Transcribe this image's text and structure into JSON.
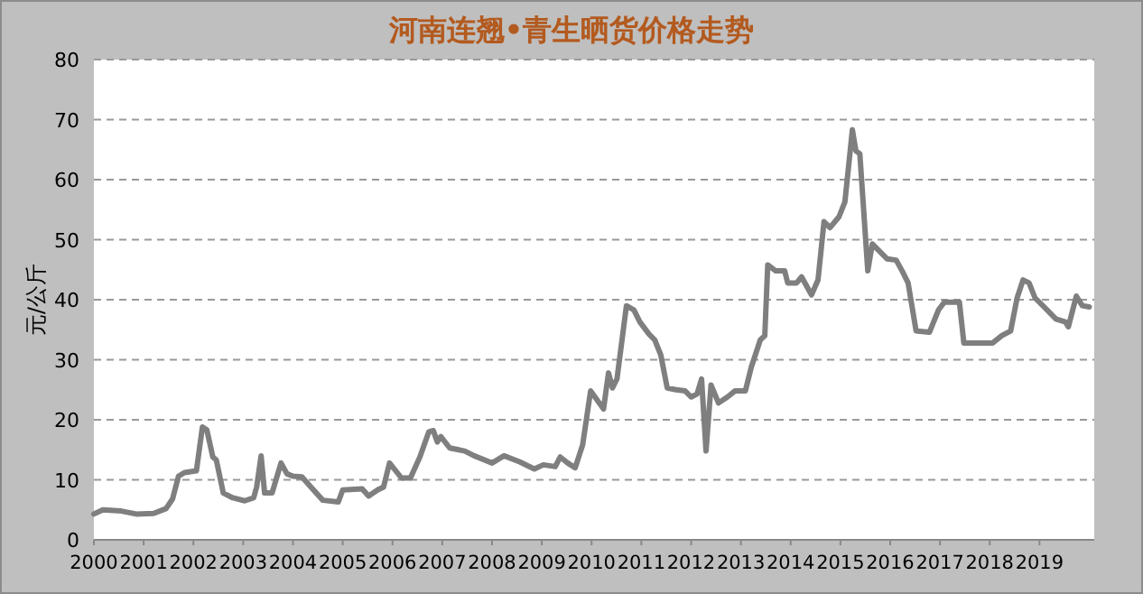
{
  "chart_data": {
    "type": "line",
    "title": "河南连翘•青生晒货价格走势",
    "ylabel": "元/公斤",
    "grid": "y",
    "line_style": "solid",
    "marker": "none",
    "xlim": [
      2000,
      2020.1
    ],
    "xticks": [
      2000,
      2001,
      2002,
      2003,
      2004,
      2005,
      2006,
      2007,
      2008,
      2009,
      2010,
      2011,
      2012,
      2013,
      2014,
      2015,
      2016,
      2017,
      2018,
      2019
    ],
    "ylim": [
      0,
      80
    ],
    "yticks": [
      0,
      10,
      20,
      30,
      40,
      50,
      60,
      70,
      80
    ],
    "series": [
      {
        "color": "#7f7f7f",
        "x": [
          2000.0,
          2000.18,
          2000.55,
          2000.85,
          2001.2,
          2001.45,
          2001.58,
          2001.7,
          2001.82,
          2002.06,
          2002.18,
          2002.27,
          2002.39,
          2002.46,
          2002.6,
          2002.79,
          2003.03,
          2003.21,
          2003.27,
          2003.36,
          2003.43,
          2003.58,
          2003.76,
          2003.88,
          2004.0,
          2004.18,
          2004.36,
          2004.6,
          2004.91,
          2005.0,
          2005.39,
          2005.52,
          2005.7,
          2005.82,
          2005.94,
          2006.18,
          2006.36,
          2006.55,
          2006.73,
          2006.82,
          2006.9,
          2006.97,
          2007.15,
          2007.45,
          2007.64,
          2008.0,
          2008.24,
          2008.55,
          2008.85,
          2009.03,
          2009.27,
          2009.37,
          2009.52,
          2009.67,
          2009.82,
          2009.98,
          2010.24,
          2010.34,
          2010.42,
          2010.51,
          2010.7,
          2010.85,
          2010.97,
          2011.15,
          2011.27,
          2011.39,
          2011.52,
          2011.7,
          2011.88,
          2012.0,
          2012.12,
          2012.21,
          2012.3,
          2012.4,
          2012.55,
          2012.73,
          2012.88,
          2013.09,
          2013.21,
          2013.39,
          2013.48,
          2013.54,
          2013.7,
          2013.88,
          2013.94,
          2014.12,
          2014.22,
          2014.42,
          2014.55,
          2014.67,
          2014.79,
          2014.97,
          2015.09,
          2015.24,
          2015.31,
          2015.39,
          2015.55,
          2015.64,
          2015.76,
          2015.94,
          2016.12,
          2016.24,
          2016.36,
          2016.52,
          2016.79,
          2016.97,
          2017.09,
          2017.39,
          2017.48,
          2018.06,
          2018.24,
          2018.42,
          2018.55,
          2018.67,
          2018.79,
          2018.91,
          2019.09,
          2019.33,
          2019.52,
          2019.58,
          2019.74,
          2019.86,
          2020.0
        ],
        "values": [
          4.3,
          5.0,
          4.8,
          4.3,
          4.4,
          5.2,
          6.8,
          10.6,
          11.2,
          11.5,
          18.8,
          18.3,
          13.8,
          13.3,
          7.8,
          7.0,
          6.5,
          7.0,
          8.8,
          14.0,
          7.8,
          7.8,
          12.8,
          11.0,
          10.6,
          10.5,
          8.8,
          6.6,
          6.3,
          8.3,
          8.5,
          7.3,
          8.3,
          8.8,
          12.8,
          10.3,
          10.3,
          13.8,
          18.0,
          18.2,
          16.3,
          17.2,
          15.3,
          14.8,
          14.0,
          12.8,
          14.0,
          13.0,
          11.8,
          12.5,
          12.2,
          13.8,
          12.8,
          12.0,
          15.8,
          24.8,
          21.8,
          27.8,
          25.3,
          26.8,
          39.0,
          38.3,
          36.3,
          34.3,
          33.3,
          30.8,
          25.3,
          25.0,
          24.8,
          23.8,
          24.3,
          26.8,
          14.8,
          25.8,
          22.8,
          23.8,
          24.8,
          24.8,
          28.8,
          33.3,
          34.0,
          45.8,
          44.8,
          44.8,
          42.8,
          42.8,
          43.8,
          40.8,
          43.3,
          53.0,
          52.0,
          53.8,
          56.3,
          68.3,
          64.8,
          64.3,
          44.8,
          49.3,
          48.3,
          46.8,
          46.6,
          44.8,
          42.8,
          34.8,
          34.6,
          38.3,
          39.6,
          39.6,
          32.8,
          32.8,
          34.0,
          34.8,
          40.3,
          43.3,
          42.8,
          40.3,
          38.8,
          36.8,
          36.3,
          35.5,
          40.6,
          39.0,
          38.8
        ]
      }
    ]
  }
}
